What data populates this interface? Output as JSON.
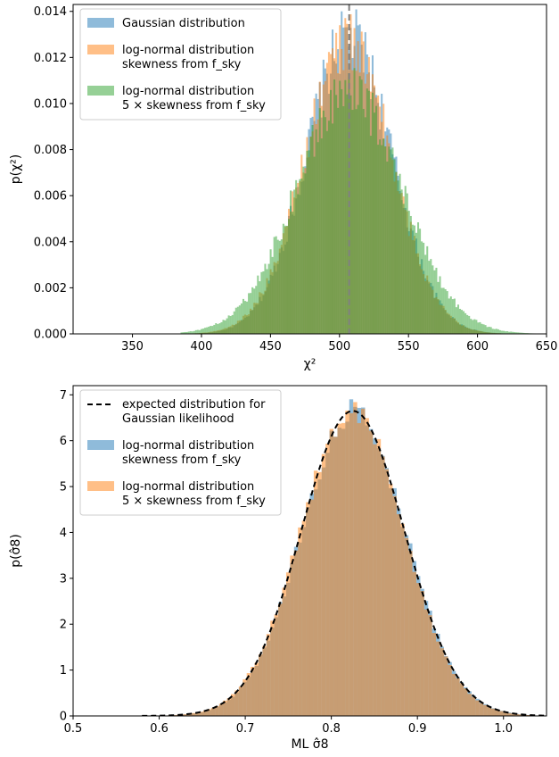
{
  "chart_data": [
    {
      "type": "histogram",
      "xlabel": "χ²",
      "ylabel": "p(χ²)",
      "xlim": [
        307,
        650
      ],
      "ylim": [
        0,
        0.0143
      ],
      "xticks": [
        350,
        400,
        450,
        500,
        550,
        600,
        650
      ],
      "xtick_labels": [
        "350",
        "400",
        "450",
        "500",
        "550",
        "600",
        "650"
      ],
      "yticks": [
        0,
        0.002,
        0.004,
        0.006,
        0.008,
        0.01,
        0.012,
        0.014
      ],
      "ytick_labels": [
        "0.000",
        "0.002",
        "0.004",
        "0.006",
        "0.008",
        "0.010",
        "0.012",
        "0.014"
      ],
      "reference_line": {
        "x": 507,
        "style": "dashed",
        "color": "#808080"
      },
      "legend_position": "top-left",
      "series": [
        {
          "name": "Gaussian distribution",
          "color": "#1f77b4",
          "distribution": {
            "kind": "normal",
            "mean": 507,
            "std": 31,
            "min": 390,
            "max": 640
          }
        },
        {
          "name": "log-normal distribution skewness from f_sky",
          "color": "#ff7f0e",
          "distribution": {
            "kind": "normal",
            "mean": 506,
            "std": 31.5,
            "min": 380,
            "max": 650
          }
        },
        {
          "name": "log-normal distribution 5 × skewness from f_sky",
          "color": "#2ca02c",
          "distribution": {
            "kind": "normal",
            "mean": 507,
            "std": 38,
            "min": 385,
            "max": 650
          }
        }
      ],
      "legend": [
        {
          "color": "#1f77b4",
          "lines": [
            "Gaussian distribution"
          ]
        },
        {
          "color": "#ff7f0e",
          "lines": [
            "log-normal distribution",
            "skewness from f_sky"
          ]
        },
        {
          "color": "#2ca02c",
          "lines": [
            "log-normal distribution",
            "5 × skewness from f_sky"
          ]
        }
      ]
    },
    {
      "type": "histogram",
      "xlabel": "ML σ̂8",
      "ylabel": "p(σ̂8)",
      "xlim": [
        0.5,
        1.05
      ],
      "ylim": [
        0,
        7.2
      ],
      "xticks": [
        0.5,
        0.6,
        0.7,
        0.8,
        0.9,
        1.0
      ],
      "xtick_labels": [
        "0.5",
        "0.6",
        "0.7",
        "0.8",
        "0.9",
        "1.0"
      ],
      "yticks": [
        0,
        1,
        2,
        3,
        4,
        5,
        6,
        7
      ],
      "ytick_labels": [
        "0",
        "1",
        "2",
        "3",
        "4",
        "5",
        "6",
        "7"
      ],
      "legend_position": "top-left",
      "expected_curve": {
        "name": "expected distribution for Gaussian likelihood",
        "kind": "normal",
        "mean": 0.825,
        "std": 0.06,
        "style": "dashed",
        "color": "#000000"
      },
      "series": [
        {
          "name": "log-normal distribution skewness from f_sky",
          "color": "#1f77b4",
          "distribution": {
            "kind": "normal",
            "mean": 0.826,
            "std": 0.06,
            "min": 0.57,
            "max": 1.03
          }
        },
        {
          "name": "log-normal distribution 5 × skewness from f_sky",
          "color": "#ff7f0e",
          "distribution": {
            "kind": "normal",
            "mean": 0.824,
            "std": 0.06,
            "min": 0.57,
            "max": 1.03
          }
        }
      ],
      "legend": [
        {
          "color": "#000000",
          "dashed": true,
          "lines": [
            "expected distribution for",
            "Gaussian likelihood"
          ]
        },
        {
          "color": "#1f77b4",
          "lines": [
            "log-normal distribution",
            "skewness from f_sky"
          ]
        },
        {
          "color": "#ff7f0e",
          "lines": [
            "log-normal distribution",
            "5 × skewness from f_sky"
          ]
        }
      ]
    }
  ]
}
